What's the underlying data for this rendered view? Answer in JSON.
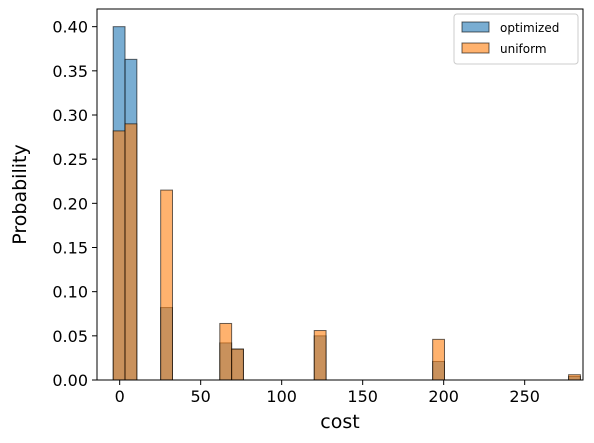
{
  "chart_data": {
    "type": "bar",
    "xlabel": "cost",
    "ylabel": "Probability",
    "xlim": [
      -14,
      286
    ],
    "ylim": [
      0,
      0.42
    ],
    "xticks": [
      0,
      50,
      100,
      150,
      200,
      250
    ],
    "xtick_labels": [
      "0",
      "50",
      "100",
      "150",
      "200",
      "250"
    ],
    "yticks": [
      0.0,
      0.05,
      0.1,
      0.15,
      0.2,
      0.25,
      0.3,
      0.35,
      0.4
    ],
    "ytick_labels": [
      "0.00",
      "0.05",
      "0.10",
      "0.15",
      "0.20",
      "0.25",
      "0.30",
      "0.35",
      "0.40"
    ],
    "grid": false,
    "legend_position": "top-right",
    "bin_width": 7.3,
    "series": [
      {
        "name": "optimized",
        "color": "#1f77b4",
        "bins": [
          {
            "x": -4,
            "value": 0.4
          },
          {
            "x": 3.3,
            "value": 0.363
          },
          {
            "x": 25.3,
            "value": 0.082
          },
          {
            "x": 61.8,
            "value": 0.042
          },
          {
            "x": 69.1,
            "value": 0.035
          },
          {
            "x": 120.1,
            "value": 0.05
          },
          {
            "x": 193.2,
            "value": 0.021
          },
          {
            "x": 277.1,
            "value": 0.004
          }
        ]
      },
      {
        "name": "uniform",
        "color": "#ff7f0e",
        "bins": [
          {
            "x": -4,
            "value": 0.282
          },
          {
            "x": 3.3,
            "value": 0.29
          },
          {
            "x": 25.3,
            "value": 0.215
          },
          {
            "x": 61.8,
            "value": 0.064
          },
          {
            "x": 69.1,
            "value": 0.035
          },
          {
            "x": 120.1,
            "value": 0.056
          },
          {
            "x": 193.2,
            "value": 0.046
          },
          {
            "x": 277.1,
            "value": 0.006
          }
        ]
      }
    ]
  }
}
